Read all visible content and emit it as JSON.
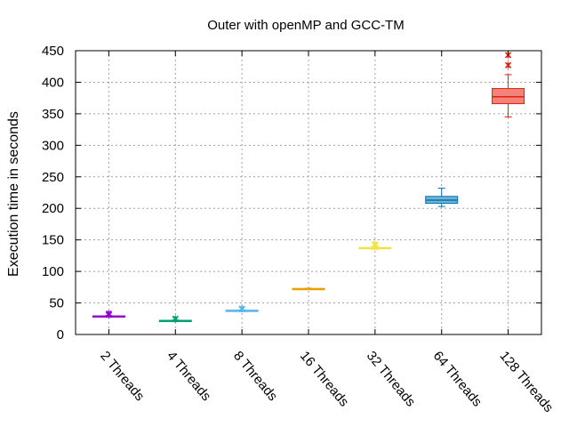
{
  "chart_data": {
    "type": "box",
    "title": "Outer with openMP and GCC-TM",
    "xlabel": "",
    "ylabel": "Execution time in seconds",
    "ylim": [
      0,
      450
    ],
    "yticks": [
      0,
      50,
      100,
      150,
      200,
      250,
      300,
      350,
      400,
      450
    ],
    "grid": true,
    "categories": [
      "2 Threads",
      "4 Threads",
      "8 Threads",
      "16 Threads",
      "32 Threads",
      "64 Threads",
      "128 Threads"
    ],
    "boxes": [
      {
        "category": "2 Threads",
        "color": "#9400d3",
        "whisker_low": 28,
        "q1": 28.5,
        "median": 29,
        "q3": 29.5,
        "whisker_high": 30,
        "outliers": [
          31,
          32,
          33
        ]
      },
      {
        "category": "4 Threads",
        "color": "#009e73",
        "whisker_low": 21,
        "q1": 21.5,
        "median": 22,
        "q3": 22.5,
        "whisker_high": 23,
        "outliers": [
          24,
          25
        ]
      },
      {
        "category": "8 Threads",
        "color": "#56b4e9",
        "whisker_low": 37,
        "q1": 37.5,
        "median": 38,
        "q3": 38.5,
        "whisker_high": 39,
        "outliers": [
          40,
          41
        ]
      },
      {
        "category": "16 Threads",
        "color": "#e69f00",
        "whisker_low": 71.5,
        "q1": 72,
        "median": 72.5,
        "q3": 73,
        "whisker_high": 73.5,
        "outliers": []
      },
      {
        "category": "32 Threads",
        "color": "#f0e442",
        "whisker_low": 135,
        "q1": 136,
        "median": 137,
        "q3": 138,
        "whisker_high": 140,
        "outliers": [
          141,
          142,
          143
        ]
      },
      {
        "category": "64 Threads",
        "color": "#0072b2",
        "whisker_low": 203,
        "q1": 208,
        "median": 213,
        "q3": 219,
        "whisker_high": 232,
        "outliers": []
      },
      {
        "category": "128 Threads",
        "color": "#e51e10",
        "whisker_low": 345,
        "q1": 366,
        "median": 377,
        "q3": 390,
        "whisker_high": 412,
        "outliers": [
          427,
          443
        ]
      }
    ]
  }
}
